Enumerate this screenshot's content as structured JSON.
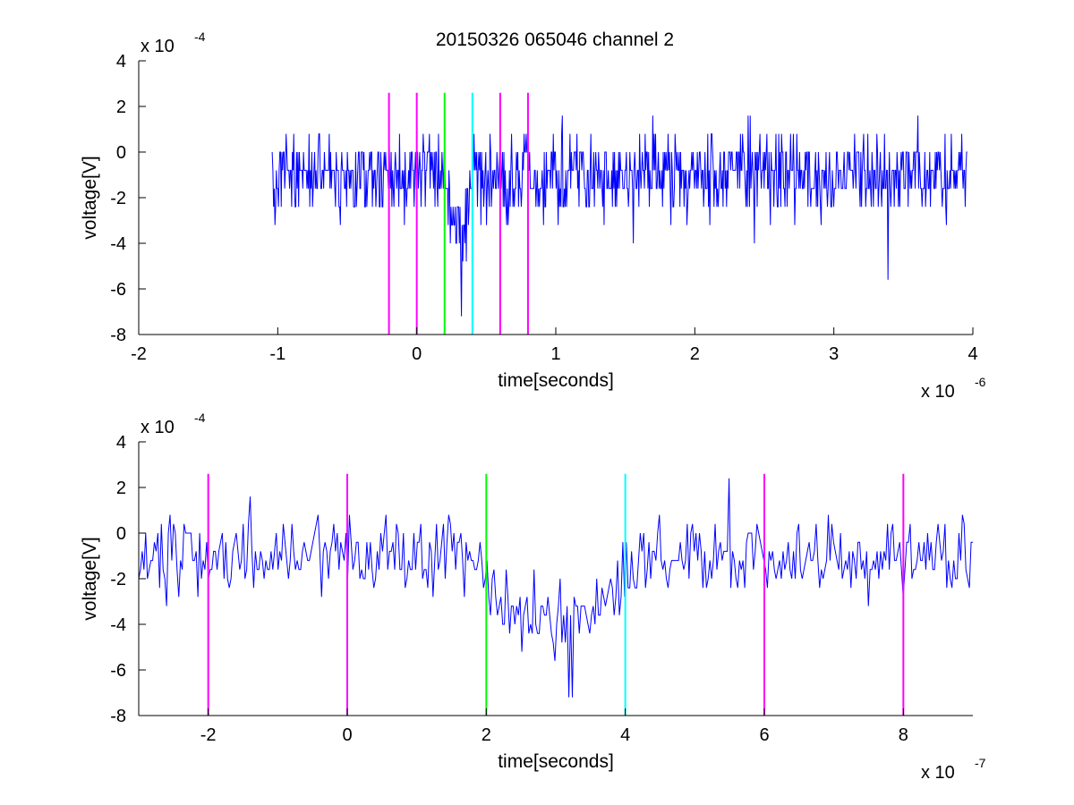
{
  "figure": {
    "title": "20150326 065046 channel 2"
  },
  "chart_data": [
    {
      "type": "line",
      "title": "20150326 065046 channel 2",
      "xlabel": "time[seconds]",
      "ylabel": "voltage[V]",
      "x_multiplier": "x 10",
      "x_exponent": "-6",
      "y_multiplier": "x 10",
      "y_exponent": "-4",
      "xlim": [
        -2,
        4
      ],
      "ylim": [
        -8,
        4
      ],
      "xticks": [
        -2,
        -1,
        0,
        1,
        2,
        3,
        4
      ],
      "yticks": [
        -8,
        -6,
        -4,
        -2,
        0,
        2,
        4
      ],
      "grid": false,
      "signal": {
        "color": "#0000ff",
        "x_range": [
          -1.04,
          3.96
        ],
        "baseline": -1.0,
        "noise_amplitude": 1.8,
        "quantization": 0.8,
        "dip": {
          "x_start": 0.18,
          "x_end": 0.44,
          "min_value": -7.2
        },
        "notable_points": [
          {
            "x": 1.7,
            "y": 1.6
          },
          {
            "x": 3.39,
            "y": -5.6
          },
          {
            "x": 1.56,
            "y": -4.0
          },
          {
            "x": 2.43,
            "y": -4.0
          }
        ]
      },
      "markers": [
        {
          "x": -0.2,
          "color": "#ff00ff"
        },
        {
          "x": 0.0,
          "color": "#ff00ff"
        },
        {
          "x": 0.2,
          "color": "#00ff00"
        },
        {
          "x": 0.4,
          "color": "#00ffff"
        },
        {
          "x": 0.6,
          "color": "#ff00ff"
        },
        {
          "x": 0.8,
          "color": "#ff00ff"
        }
      ],
      "marker_ylim": [
        -8,
        2.6
      ]
    },
    {
      "type": "line",
      "xlabel": "time[seconds]",
      "ylabel": "voltage[V]",
      "x_multiplier": "x 10",
      "x_exponent": "-7",
      "y_multiplier": "x 10",
      "y_exponent": "-4",
      "xlim": [
        -3,
        9
      ],
      "ylim": [
        -8,
        4
      ],
      "xticks": [
        -2,
        0,
        2,
        4,
        6,
        8
      ],
      "yticks": [
        -8,
        -6,
        -4,
        -2,
        0,
        2,
        4
      ],
      "grid": false,
      "signal": {
        "color": "#0000ff",
        "x_range": [
          -3,
          9
        ],
        "baseline": -1.0,
        "noise_amplitude": 1.6,
        "quantization": 0.4,
        "dip": {
          "x_start": 1.7,
          "x_end": 4.5,
          "min_value": -7.2
        },
        "notable_points": [
          {
            "x": -2.6,
            "y": -3.2
          },
          {
            "x": -1.4,
            "y": 1.6
          },
          {
            "x": 1.45,
            "y": 0.8
          },
          {
            "x": 3.2,
            "y": -7.2
          },
          {
            "x": 5.5,
            "y": 2.4
          },
          {
            "x": 7.5,
            "y": -3.2
          }
        ]
      },
      "markers": [
        {
          "x": -2,
          "color": "#ff00ff"
        },
        {
          "x": 0,
          "color": "#ff00ff"
        },
        {
          "x": 2,
          "color": "#00ff00"
        },
        {
          "x": 4,
          "color": "#00ffff"
        },
        {
          "x": 6,
          "color": "#ff00ff"
        },
        {
          "x": 8,
          "color": "#ff00ff"
        }
      ],
      "marker_ylim": [
        -8,
        2.6
      ]
    }
  ]
}
